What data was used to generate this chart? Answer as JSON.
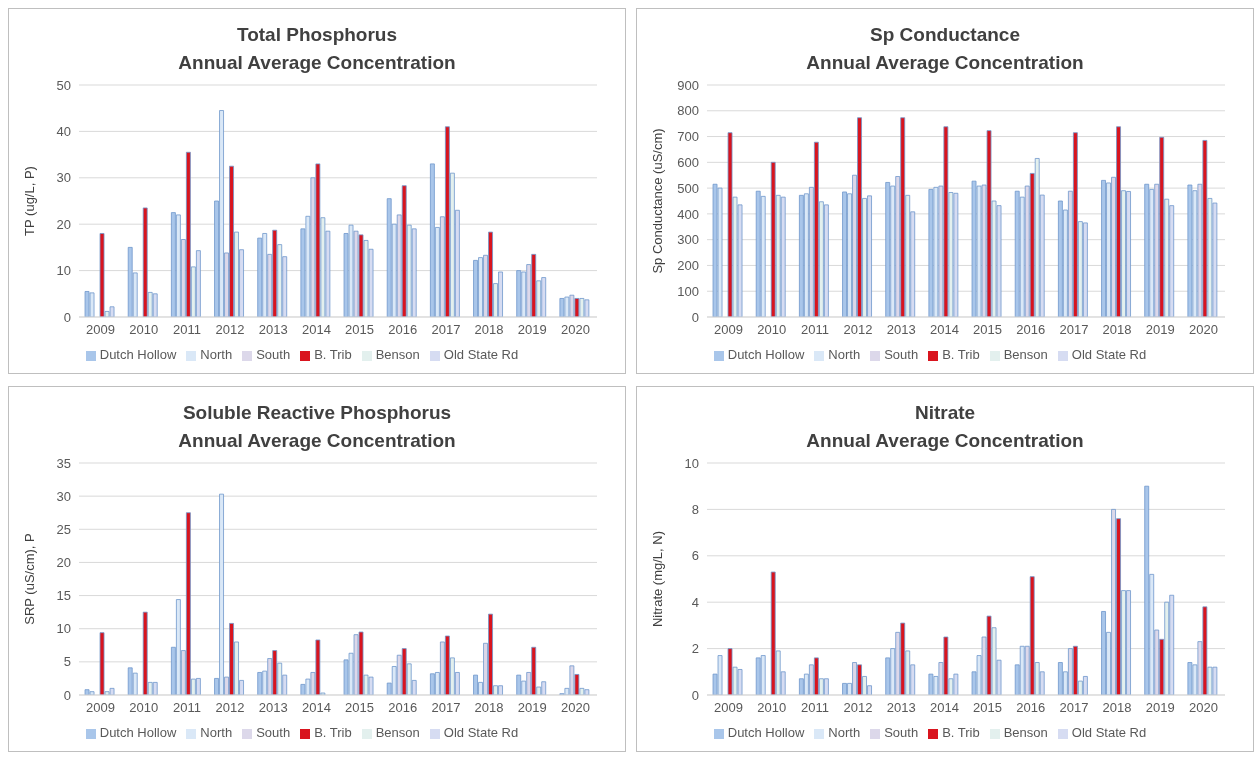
{
  "chart_data": [
    {
      "type": "bar",
      "title": "Total Phosphorus",
      "subtitle": "Annual Average Concentration",
      "ylabel": "TP (ug/L, P)",
      "categories": [
        "2009",
        "2010",
        "2011",
        "2012",
        "2013",
        "2014",
        "2015",
        "2016",
        "2017",
        "2018",
        "2019",
        "2020"
      ],
      "series": [
        {
          "name": "Dutch Hollow",
          "color": "#a9c6ea",
          "values": [
            5.5,
            15,
            22.5,
            25,
            17,
            19,
            18,
            25.5,
            33,
            12.2,
            10,
            4
          ]
        },
        {
          "name": "North",
          "color": "#dae8f7",
          "values": [
            5.2,
            9.5,
            22,
            44.5,
            18,
            21.7,
            19.8,
            20,
            19.3,
            12.8,
            9.7,
            4.3
          ]
        },
        {
          "name": "South",
          "color": "#dcd8ea",
          "values": [
            null,
            null,
            16.7,
            13.8,
            13.5,
            30,
            18.5,
            22,
            21.6,
            13.3,
            11.3,
            4.7
          ]
        },
        {
          "name": "B. Trib",
          "color": "#d9141e",
          "values": [
            18,
            23.5,
            35.5,
            32.5,
            18.7,
            33,
            17.7,
            28.3,
            41,
            18.3,
            13.5,
            4
          ]
        },
        {
          "name": "Benson",
          "color": "#e3f0ee",
          "values": [
            1.2,
            5.3,
            10.8,
            18.3,
            15.6,
            21.4,
            16.5,
            19.8,
            31,
            7.2,
            7.8,
            4
          ]
        },
        {
          "name": "Old State Rd",
          "color": "#d6dcf2",
          "values": [
            2.2,
            5,
            14.3,
            14.5,
            13,
            18.5,
            14.6,
            19,
            23,
            9.7,
            8.5,
            3.7
          ]
        }
      ],
      "ylim": [
        0,
        50
      ],
      "yticks": [
        0,
        10,
        20,
        30,
        40,
        50
      ],
      "grid": "y",
      "legend": "bottom"
    },
    {
      "type": "bar",
      "title": "Sp Conductance",
      "subtitle": "Annual Average Concentration",
      "ylabel": "Sp Conductance (uS/cm)",
      "categories": [
        "2009",
        "2010",
        "2011",
        "2012",
        "2013",
        "2014",
        "2015",
        "2016",
        "2017",
        "2018",
        "2019",
        "2020"
      ],
      "series": [
        {
          "name": "Dutch Hollow",
          "color": "#a9c6ea",
          "values": [
            515,
            488,
            472,
            485,
            522,
            495,
            527,
            488,
            450,
            530,
            515,
            512
          ]
        },
        {
          "name": "North",
          "color": "#dae8f7",
          "values": [
            500,
            468,
            478,
            478,
            508,
            503,
            508,
            465,
            415,
            520,
            495,
            490
          ]
        },
        {
          "name": "South",
          "color": "#dcd8ea",
          "values": [
            null,
            null,
            503,
            550,
            545,
            508,
            512,
            508,
            488,
            542,
            515,
            515
          ]
        },
        {
          "name": "B. Trib",
          "color": "#d9141e",
          "values": [
            715,
            600,
            678,
            773,
            773,
            738,
            723,
            557,
            715,
            738,
            697,
            685
          ]
        },
        {
          "name": "Benson",
          "color": "#e3f0ee",
          "values": [
            465,
            472,
            447,
            460,
            472,
            483,
            450,
            615,
            370,
            490,
            457,
            460
          ]
        },
        {
          "name": "Old State Rd",
          "color": "#d6dcf2",
          "values": [
            435,
            465,
            435,
            470,
            408,
            480,
            432,
            473,
            365,
            487,
            432,
            442
          ]
        }
      ],
      "ylim": [
        0,
        900
      ],
      "yticks": [
        0,
        100,
        200,
        300,
        400,
        500,
        600,
        700,
        800,
        900
      ],
      "grid": "y",
      "legend": "bottom"
    },
    {
      "type": "bar",
      "title": "Soluble Reactive Phosphorus",
      "subtitle": "Annual Average Concentration",
      "ylabel": "SRP (uS/cm), P",
      "categories": [
        "2009",
        "2010",
        "2011",
        "2012",
        "2013",
        "2014",
        "2015",
        "2016",
        "2017",
        "2018",
        "2019",
        "2020"
      ],
      "series": [
        {
          "name": "Dutch Hollow",
          "color": "#a9c6ea",
          "values": [
            0.8,
            4.1,
            7.2,
            2.5,
            3.4,
            1.6,
            5.3,
            1.8,
            3.2,
            3,
            3,
            0.2
          ]
        },
        {
          "name": "North",
          "color": "#dae8f7",
          "values": [
            0.5,
            3.3,
            14.4,
            30.3,
            3.6,
            2.4,
            6.3,
            4.3,
            3.4,
            1.9,
            2.1,
            1
          ]
        },
        {
          "name": "South",
          "color": "#dcd8ea",
          "values": [
            null,
            null,
            6.7,
            2.7,
            5.5,
            3.4,
            9.1,
            6,
            8,
            7.8,
            3.4,
            4.4
          ]
        },
        {
          "name": "B. Trib",
          "color": "#d9141e",
          "values": [
            9.4,
            12.5,
            27.5,
            10.8,
            6.7,
            8.3,
            9.5,
            7,
            8.9,
            12.2,
            7.2,
            3.1
          ]
        },
        {
          "name": "Benson",
          "color": "#e3f0ee",
          "values": [
            0.5,
            1.9,
            2.4,
            8,
            4.8,
            0.3,
            3,
            4.7,
            5.6,
            1.4,
            1.2,
            1
          ]
        },
        {
          "name": "Old State Rd",
          "color": "#d6dcf2",
          "values": [
            1,
            1.9,
            2.5,
            2.2,
            3,
            null,
            2.7,
            2.2,
            3.4,
            1.4,
            2,
            0.8
          ]
        }
      ],
      "ylim": [
        0,
        35
      ],
      "yticks": [
        0,
        5,
        10,
        15,
        20,
        25,
        30,
        35
      ],
      "grid": "y",
      "legend": "bottom"
    },
    {
      "type": "bar",
      "title": "Nitrate",
      "subtitle": "Annual Average Concentration",
      "ylabel": "Nitrate (mg/L, N)",
      "categories": [
        "2009",
        "2010",
        "2011",
        "2012",
        "2013",
        "2014",
        "2015",
        "2016",
        "2017",
        "2018",
        "2019",
        "2020"
      ],
      "series": [
        {
          "name": "Dutch Hollow",
          "color": "#a9c6ea",
          "values": [
            0.9,
            1.6,
            0.7,
            0.5,
            1.6,
            0.9,
            1,
            1.3,
            1.4,
            3.6,
            9,
            1.4
          ]
        },
        {
          "name": "North",
          "color": "#dae8f7",
          "values": [
            1.7,
            1.7,
            0.9,
            0.5,
            2,
            0.8,
            1.7,
            2.1,
            1,
            2.7,
            5.2,
            1.3
          ]
        },
        {
          "name": "South",
          "color": "#dcd8ea",
          "values": [
            null,
            null,
            1.3,
            1.4,
            2.7,
            1.4,
            2.5,
            2.1,
            2,
            8,
            2.8,
            2.3
          ]
        },
        {
          "name": "B. Trib",
          "color": "#d9141e",
          "values": [
            2,
            5.3,
            1.6,
            1.3,
            3.1,
            2.5,
            3.4,
            5.1,
            2.1,
            7.6,
            2.4,
            3.8
          ]
        },
        {
          "name": "Benson",
          "color": "#e3f0ee",
          "values": [
            1.2,
            1.9,
            0.7,
            0.8,
            1.9,
            0.7,
            2.9,
            1.4,
            0.6,
            4.5,
            4,
            1.2
          ]
        },
        {
          "name": "Old State Rd",
          "color": "#d6dcf2",
          "values": [
            1.1,
            1,
            0.7,
            0.4,
            1.3,
            0.9,
            1.5,
            1,
            0.8,
            4.5,
            4.3,
            1.2
          ]
        }
      ],
      "ylim": [
        0,
        10
      ],
      "yticks": [
        0,
        2,
        4,
        6,
        8,
        10
      ],
      "grid": "y",
      "legend": "bottom"
    }
  ]
}
